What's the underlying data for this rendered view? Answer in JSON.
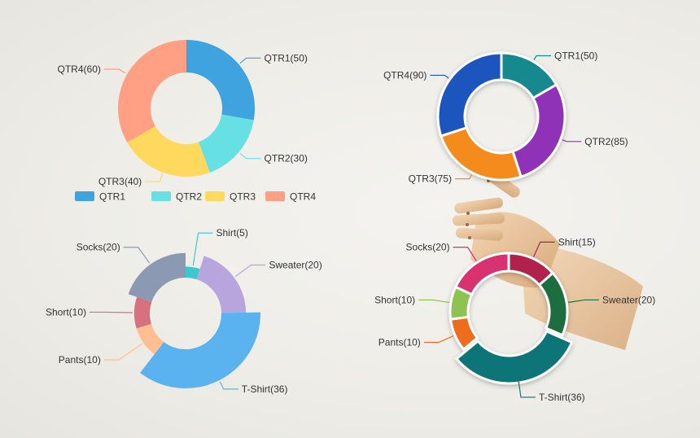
{
  "chart_data": [
    {
      "type": "pie",
      "variant": "donut",
      "title": "",
      "categories": [
        "QTR1",
        "QTR2",
        "QTR3",
        "QTR4"
      ],
      "values": [
        50,
        30,
        40,
        60
      ],
      "labels": [
        "QTR1(50)",
        "QTR2(30)",
        "QTR3(40)",
        "QTR4(60)"
      ],
      "colors": [
        "#3fa3e0",
        "#66e0e3",
        "#ffd95e",
        "#ff9f84"
      ],
      "legend": {
        "position": "bottom",
        "entries": [
          "QTR1",
          "QTR2",
          "QTR3",
          "QTR4"
        ]
      }
    },
    {
      "type": "pie",
      "variant": "donut",
      "title": "",
      "categories": [
        "QTR1",
        "QTR2",
        "QTR3",
        "QTR4"
      ],
      "values": [
        50,
        85,
        75,
        90
      ],
      "labels": [
        "QTR1(50)",
        "QTR2(85)",
        "QTR3(75)",
        "QTR4(90)"
      ],
      "colors": [
        "#17898f",
        "#8f31b7",
        "#f58b1d",
        "#1b55bd"
      ]
    },
    {
      "type": "pie",
      "variant": "rose-donut",
      "title": "",
      "categories": [
        "Shirt",
        "Sweater",
        "T-Shirt",
        "Pants",
        "Short",
        "Socks"
      ],
      "values": [
        5,
        20,
        36,
        10,
        10,
        20
      ],
      "labels": [
        "Shirt(5)",
        "Sweater(20)",
        "T-Shirt(36)",
        "Pants(10)",
        "Short(10)",
        "Socks(20)"
      ],
      "colors": [
        "#3cc8cc",
        "#b9a5de",
        "#5ab3ee",
        "#ffbf90",
        "#d7717e",
        "#8b99b2"
      ]
    },
    {
      "type": "pie",
      "variant": "donut",
      "title": "",
      "categories": [
        "Shirt",
        "Sweater",
        "T-Shirt",
        "Pants",
        "Short",
        "Socks"
      ],
      "values": [
        15,
        20,
        36,
        10,
        10,
        20
      ],
      "labels": [
        "Shirt(15)",
        "Sweater(20)",
        "T-Shirt(36)",
        "Pants(10)",
        "Short(10)",
        "Socks(20)"
      ],
      "colors": [
        "#b0224b",
        "#1e6e3f",
        "#0f7478",
        "#ed6d1d",
        "#8dc44f",
        "#d9306f"
      ]
    }
  ],
  "decor": {
    "figure": "wooden-mannequin-hand"
  }
}
